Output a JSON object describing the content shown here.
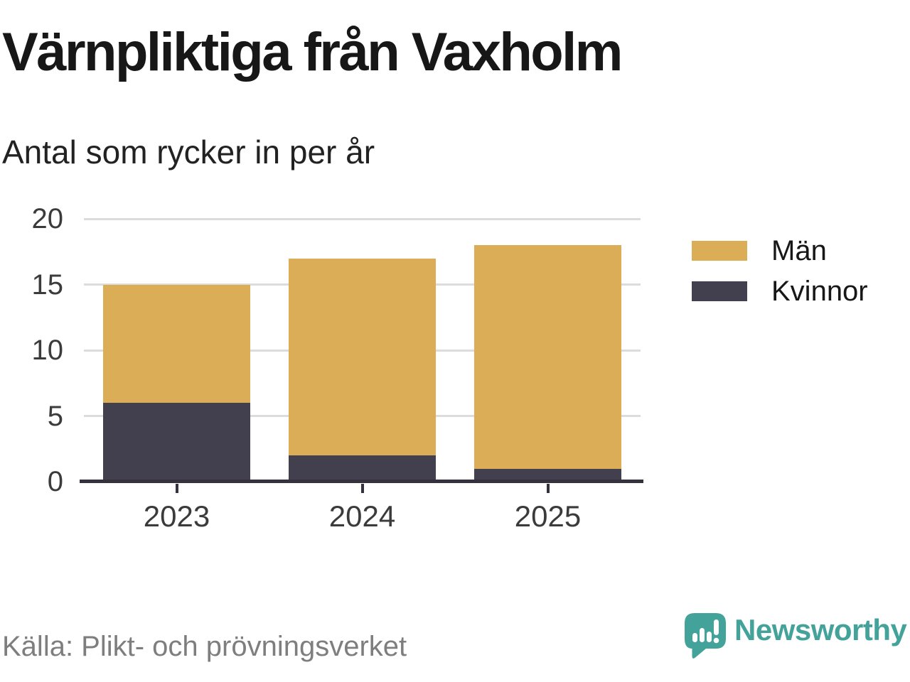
{
  "title": "Värnpliktiga från Vaxholm",
  "subtitle": "Antal som rycker in per år",
  "source": "Källa: Plikt- och prövningsverket",
  "brand": {
    "name": "Newsworthy",
    "color": "#43a29a",
    "icon": "bar-chart-speech-bubble-icon"
  },
  "colors": {
    "grid": "#dcdcdc",
    "axis": "#35323e",
    "tick_text": "#3b3b3b",
    "title_text": "#171717",
    "source_text": "#7e7e7e"
  },
  "chart_data": {
    "type": "bar",
    "stacked": true,
    "title": "Värnpliktiga från Vaxholm",
    "subtitle": "Antal som rycker in per år",
    "categories": [
      "2023",
      "2024",
      "2025"
    ],
    "series": [
      {
        "name": "Män",
        "color": "#dbad57",
        "values": [
          9,
          15,
          17
        ]
      },
      {
        "name": "Kvinnor",
        "color": "#423f4e",
        "values": [
          6,
          2,
          1
        ]
      }
    ],
    "stack_order_bottom_to_top": [
      "Kvinnor",
      "Män"
    ],
    "totals": [
      15,
      17,
      18
    ],
    "xlabel": "",
    "ylabel": "",
    "ylim": [
      0,
      20
    ],
    "yticks": [
      0,
      5,
      10,
      15,
      20
    ],
    "grid": true,
    "legend_position": "right"
  }
}
